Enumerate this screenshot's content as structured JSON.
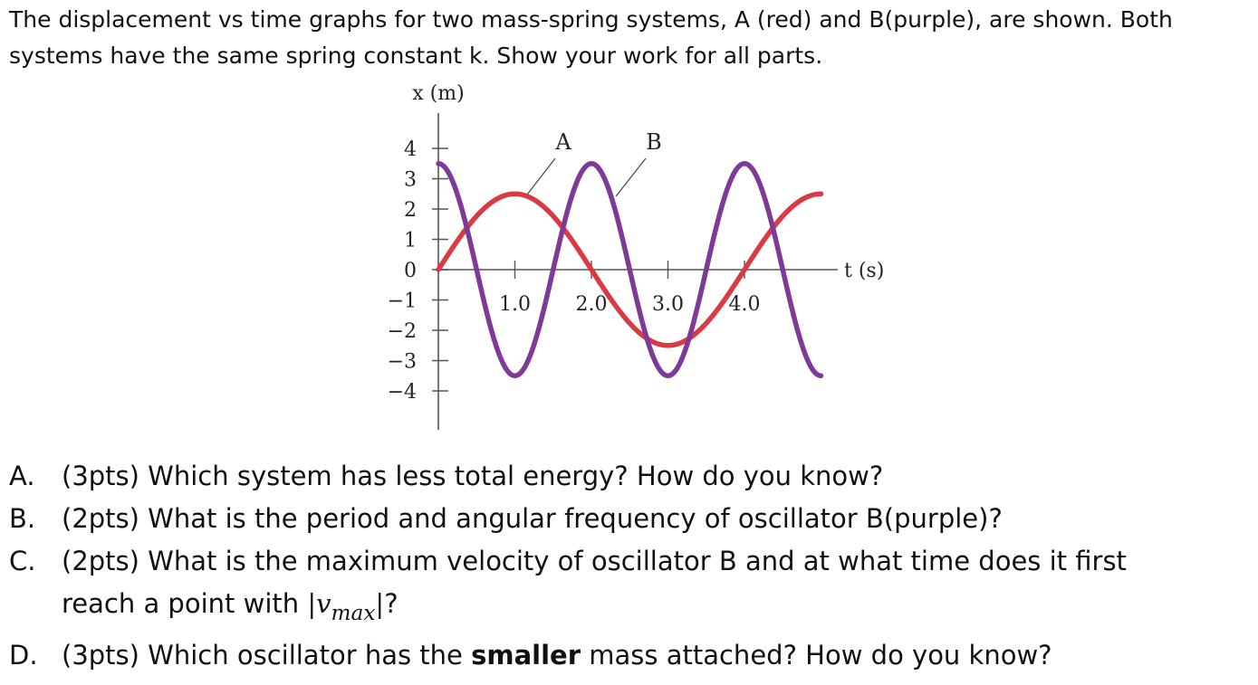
{
  "intro": {
    "line1": "The displacement vs time graphs for two mass-spring systems, A (red) and B(purple), are shown.  Both",
    "line2": "systems have the same spring constant k.  Show your work for all parts."
  },
  "chart_data": {
    "type": "line",
    "xlabel": "t (s)",
    "ylabel": "x (m)",
    "xlim": [
      0,
      5.0
    ],
    "ylim": [
      -4.5,
      4.5
    ],
    "xticks": [
      1.0,
      2.0,
      3.0,
      4.0
    ],
    "xtick_labels": [
      "1.0",
      "2.0",
      "3.0",
      "4.0"
    ],
    "yticks": [
      4,
      3,
      2,
      1,
      0,
      -1,
      -2,
      -3,
      -4
    ],
    "ytick_labels": [
      "4",
      "3",
      "2",
      "1",
      "0",
      "−1",
      "−2",
      "−3",
      "−4"
    ],
    "grid": false,
    "legend": "callout labels near curves",
    "series": [
      {
        "name": "A",
        "color": "#d93a43",
        "function": "x = 2.5 sin(2πt/4)",
        "amplitude": 2.5,
        "period": 4.0,
        "x": [
          0,
          0.5,
          1.0,
          1.5,
          2.0,
          2.5,
          3.0,
          3.5,
          4.0,
          4.5,
          5.0
        ],
        "y": [
          0,
          1.77,
          2.5,
          1.77,
          0,
          -1.77,
          -2.5,
          -1.77,
          0,
          1.77,
          2.5
        ]
      },
      {
        "name": "B",
        "color": "#7e3a96",
        "function": "x = 3.5 cos(2πt/2)",
        "amplitude": 3.5,
        "period": 2.0,
        "x": [
          0,
          0.5,
          1.0,
          1.5,
          2.0,
          2.5,
          3.0,
          3.5,
          4.0,
          4.5,
          5.0
        ],
        "y": [
          3.5,
          0,
          -3.5,
          0,
          3.5,
          0,
          -3.5,
          0,
          3.5,
          0,
          -3.5
        ]
      }
    ]
  },
  "questions": [
    {
      "letter": "A.",
      "text": "(3pts) Which system has less total energy? How do you know?"
    },
    {
      "letter": "B.",
      "text": "(2pts) What is the period and angular frequency of oscillator B(purple)?"
    },
    {
      "letter": "C.",
      "line1": "(2pts) What is the maximum velocity of oscillator B and at what time does it first",
      "line2_pre": "reach a point with ",
      "math_open": "|v",
      "math_sub": "max",
      "math_close": "|",
      "line2_post": "?"
    },
    {
      "letter": "D.",
      "pre": "(3pts) Which oscillator has the ",
      "bold": "smaller",
      "post": " mass attached? How do you know?"
    }
  ]
}
